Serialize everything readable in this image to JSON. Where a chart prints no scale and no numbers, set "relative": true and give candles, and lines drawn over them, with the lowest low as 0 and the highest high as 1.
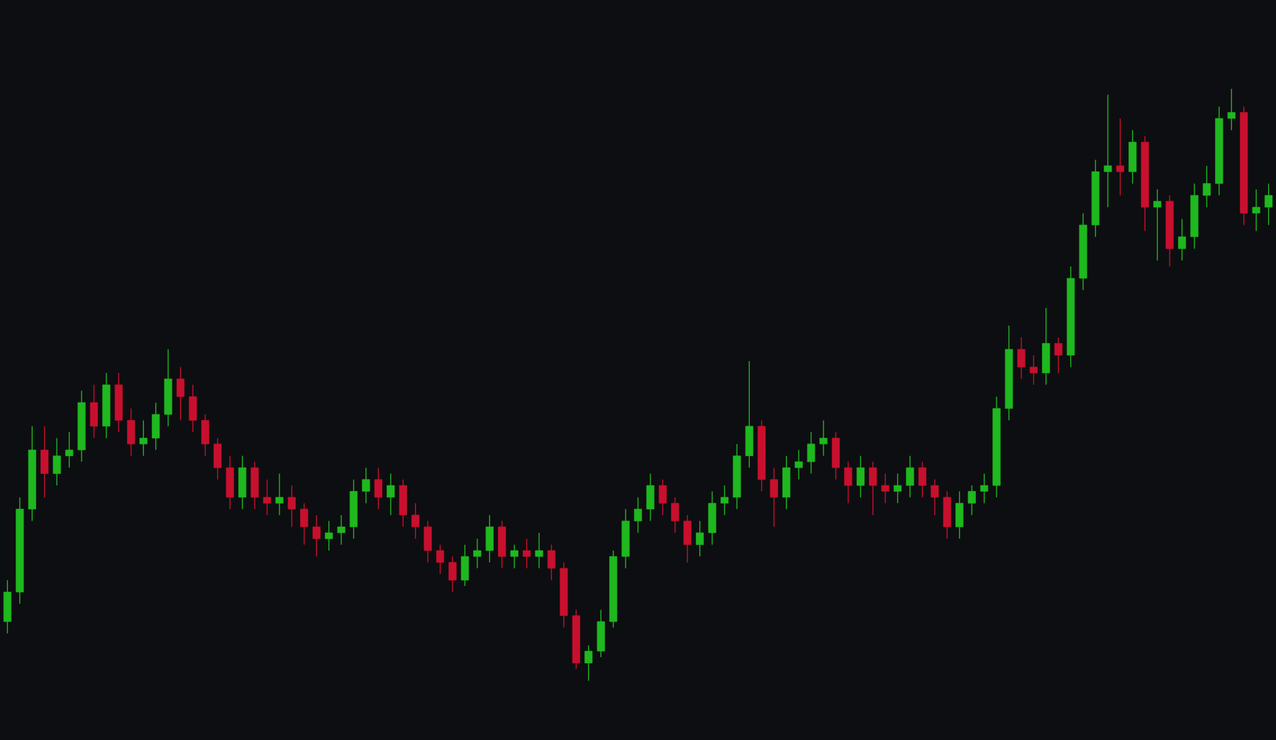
{
  "chart_data": {
    "type": "candlestick",
    "relative": true,
    "categories": [
      null,
      null,
      null,
      null,
      null,
      null,
      null,
      null,
      null,
      null,
      null,
      null,
      null,
      null,
      null,
      null,
      null,
      null,
      null,
      null,
      null,
      null,
      null,
      null,
      null,
      null,
      null,
      null,
      null,
      null,
      null,
      null,
      null,
      null,
      null,
      null,
      null,
      null,
      null,
      null,
      null,
      null,
      null,
      null,
      null,
      null,
      null,
      null,
      null,
      null,
      null,
      null,
      null,
      null,
      null,
      null,
      null,
      null,
      null,
      null,
      null,
      null,
      null,
      null,
      null,
      null,
      null,
      null,
      null,
      null,
      null,
      null,
      null,
      null,
      null,
      null,
      null,
      null,
      null,
      null,
      null,
      null,
      null,
      null,
      null,
      null,
      null,
      null,
      null,
      null,
      null,
      null,
      null,
      null,
      null,
      null,
      null,
      null,
      null,
      null,
      null,
      null,
      null
    ],
    "ohlc": [
      [
        0.1,
        0.17,
        0.08,
        0.15
      ],
      [
        0.15,
        0.31,
        0.13,
        0.29
      ],
      [
        0.29,
        0.43,
        0.27,
        0.39
      ],
      [
        0.39,
        0.43,
        0.31,
        0.35
      ],
      [
        0.35,
        0.41,
        0.33,
        0.38
      ],
      [
        0.38,
        0.42,
        0.36,
        0.39
      ],
      [
        0.39,
        0.49,
        0.37,
        0.47
      ],
      [
        0.47,
        0.5,
        0.41,
        0.43
      ],
      [
        0.43,
        0.52,
        0.41,
        0.5
      ],
      [
        0.5,
        0.52,
        0.42,
        0.44
      ],
      [
        0.44,
        0.46,
        0.38,
        0.4
      ],
      [
        0.4,
        0.44,
        0.38,
        0.41
      ],
      [
        0.41,
        0.47,
        0.39,
        0.45
      ],
      [
        0.45,
        0.56,
        0.43,
        0.51
      ],
      [
        0.51,
        0.53,
        0.44,
        0.48
      ],
      [
        0.48,
        0.5,
        0.42,
        0.44
      ],
      [
        0.44,
        0.45,
        0.38,
        0.4
      ],
      [
        0.4,
        0.41,
        0.34,
        0.36
      ],
      [
        0.36,
        0.38,
        0.29,
        0.31
      ],
      [
        0.31,
        0.38,
        0.29,
        0.36
      ],
      [
        0.36,
        0.37,
        0.29,
        0.31
      ],
      [
        0.31,
        0.34,
        0.28,
        0.3
      ],
      [
        0.3,
        0.35,
        0.28,
        0.31
      ],
      [
        0.31,
        0.33,
        0.26,
        0.29
      ],
      [
        0.29,
        0.3,
        0.23,
        0.26
      ],
      [
        0.26,
        0.28,
        0.21,
        0.24
      ],
      [
        0.24,
        0.27,
        0.22,
        0.25
      ],
      [
        0.25,
        0.28,
        0.23,
        0.26
      ],
      [
        0.26,
        0.34,
        0.24,
        0.32
      ],
      [
        0.32,
        0.36,
        0.3,
        0.34
      ],
      [
        0.34,
        0.36,
        0.29,
        0.31
      ],
      [
        0.31,
        0.35,
        0.28,
        0.33
      ],
      [
        0.33,
        0.34,
        0.26,
        0.28
      ],
      [
        0.28,
        0.3,
        0.24,
        0.26
      ],
      [
        0.26,
        0.27,
        0.2,
        0.22
      ],
      [
        0.22,
        0.23,
        0.18,
        0.2
      ],
      [
        0.2,
        0.21,
        0.15,
        0.17
      ],
      [
        0.17,
        0.23,
        0.16,
        0.21
      ],
      [
        0.21,
        0.24,
        0.19,
        0.22
      ],
      [
        0.22,
        0.28,
        0.2,
        0.26
      ],
      [
        0.26,
        0.27,
        0.19,
        0.21
      ],
      [
        0.21,
        0.23,
        0.19,
        0.22
      ],
      [
        0.22,
        0.24,
        0.19,
        0.21
      ],
      [
        0.21,
        0.25,
        0.19,
        0.22
      ],
      [
        0.22,
        0.23,
        0.17,
        0.19
      ],
      [
        0.19,
        0.2,
        0.09,
        0.11
      ],
      [
        0.11,
        0.12,
        0.02,
        0.03
      ],
      [
        0.03,
        0.06,
        0.0,
        0.05
      ],
      [
        0.05,
        0.12,
        0.04,
        0.1
      ],
      [
        0.1,
        0.22,
        0.09,
        0.21
      ],
      [
        0.21,
        0.29,
        0.19,
        0.27
      ],
      [
        0.27,
        0.31,
        0.25,
        0.29
      ],
      [
        0.29,
        0.35,
        0.27,
        0.33
      ],
      [
        0.33,
        0.34,
        0.28,
        0.3
      ],
      [
        0.3,
        0.31,
        0.25,
        0.27
      ],
      [
        0.27,
        0.28,
        0.2,
        0.23
      ],
      [
        0.23,
        0.27,
        0.21,
        0.25
      ],
      [
        0.25,
        0.32,
        0.23,
        0.3
      ],
      [
        0.3,
        0.33,
        0.28,
        0.31
      ],
      [
        0.31,
        0.4,
        0.29,
        0.38
      ],
      [
        0.38,
        0.54,
        0.36,
        0.43
      ],
      [
        0.43,
        0.44,
        0.32,
        0.34
      ],
      [
        0.34,
        0.36,
        0.26,
        0.31
      ],
      [
        0.31,
        0.38,
        0.29,
        0.36
      ],
      [
        0.36,
        0.39,
        0.34,
        0.37
      ],
      [
        0.37,
        0.42,
        0.35,
        0.4
      ],
      [
        0.4,
        0.44,
        0.38,
        0.41
      ],
      [
        0.41,
        0.42,
        0.34,
        0.36
      ],
      [
        0.36,
        0.37,
        0.3,
        0.33
      ],
      [
        0.33,
        0.38,
        0.31,
        0.36
      ],
      [
        0.36,
        0.37,
        0.28,
        0.33
      ],
      [
        0.33,
        0.35,
        0.3,
        0.32
      ],
      [
        0.32,
        0.35,
        0.3,
        0.33
      ],
      [
        0.33,
        0.38,
        0.31,
        0.36
      ],
      [
        0.36,
        0.37,
        0.31,
        0.33
      ],
      [
        0.33,
        0.34,
        0.28,
        0.31
      ],
      [
        0.31,
        0.32,
        0.24,
        0.26
      ],
      [
        0.26,
        0.32,
        0.24,
        0.3
      ],
      [
        0.3,
        0.33,
        0.28,
        0.32
      ],
      [
        0.32,
        0.35,
        0.3,
        0.33
      ],
      [
        0.33,
        0.48,
        0.31,
        0.46
      ],
      [
        0.46,
        0.6,
        0.44,
        0.56
      ],
      [
        0.56,
        0.58,
        0.51,
        0.53
      ],
      [
        0.53,
        0.55,
        0.5,
        0.52
      ],
      [
        0.52,
        0.63,
        0.5,
        0.57
      ],
      [
        0.57,
        0.58,
        0.52,
        0.55
      ],
      [
        0.55,
        0.7,
        0.53,
        0.68
      ],
      [
        0.68,
        0.79,
        0.66,
        0.77
      ],
      [
        0.77,
        0.88,
        0.75,
        0.86
      ],
      [
        0.86,
        0.99,
        0.8,
        0.87
      ],
      [
        0.87,
        0.95,
        0.82,
        0.86
      ],
      [
        0.86,
        0.93,
        0.84,
        0.91
      ],
      [
        0.91,
        0.92,
        0.76,
        0.8
      ],
      [
        0.8,
        0.83,
        0.71,
        0.81
      ],
      [
        0.81,
        0.82,
        0.7,
        0.73
      ],
      [
        0.73,
        0.78,
        0.71,
        0.75
      ],
      [
        0.75,
        0.84,
        0.73,
        0.82
      ],
      [
        0.82,
        0.87,
        0.8,
        0.84
      ],
      [
        0.84,
        0.97,
        0.82,
        0.95
      ],
      [
        0.95,
        1.0,
        0.93,
        0.96
      ],
      [
        0.96,
        0.97,
        0.77,
        0.79
      ],
      [
        0.79,
        0.83,
        0.76,
        0.8
      ],
      [
        0.8,
        0.84,
        0.77,
        0.82
      ]
    ],
    "colors": [
      "#1fb81f",
      "#1fb81f",
      "#1fb81f",
      "#c8102e",
      "#1fb81f",
      "#1fb81f",
      "#1fb81f",
      "#c8102e",
      "#1fb81f",
      "#c8102e",
      "#c8102e",
      "#1fb81f",
      "#1fb81f",
      "#1fb81f",
      "#c8102e",
      "#c8102e",
      "#c8102e",
      "#c8102e",
      "#c8102e",
      "#1fb81f",
      "#c8102e",
      "#c8102e",
      "#1fb81f",
      "#c8102e",
      "#c8102e",
      "#c8102e",
      "#1fb81f",
      "#1fb81f",
      "#1fb81f",
      "#1fb81f",
      "#c8102e",
      "#1fb81f",
      "#c8102e",
      "#c8102e",
      "#c8102e",
      "#c8102e",
      "#c8102e",
      "#1fb81f",
      "#1fb81f",
      "#1fb81f",
      "#c8102e",
      "#1fb81f",
      "#c8102e",
      "#1fb81f",
      "#c8102e",
      "#c8102e",
      "#c8102e",
      "#1fb81f",
      "#1fb81f",
      "#1fb81f",
      "#1fb81f",
      "#1fb81f",
      "#1fb81f",
      "#c8102e",
      "#c8102e",
      "#c8102e",
      "#1fb81f",
      "#1fb81f",
      "#1fb81f",
      "#1fb81f",
      "#1fb81f",
      "#c8102e",
      "#c8102e",
      "#1fb81f",
      "#1fb81f",
      "#1fb81f",
      "#1fb81f",
      "#c8102e",
      "#c8102e",
      "#1fb81f",
      "#c8102e",
      "#c8102e",
      "#1fb81f",
      "#1fb81f",
      "#c8102e",
      "#c8102e",
      "#c8102e",
      "#1fb81f",
      "#1fb81f",
      "#1fb81f",
      "#1fb81f",
      "#1fb81f",
      "#c8102e",
      "#c8102e",
      "#1fb81f",
      "#c8102e",
      "#1fb81f",
      "#1fb81f",
      "#1fb81f",
      "#1fb81f",
      "#c8102e",
      "#1fb81f",
      "#c8102e",
      "#1fb81f",
      "#c8102e",
      "#1fb81f",
      "#1fb81f",
      "#1fb81f",
      "#1fb81f",
      "#1fb81f",
      "#c8102e",
      "#1fb81f",
      "#1fb81f"
    ]
  }
}
